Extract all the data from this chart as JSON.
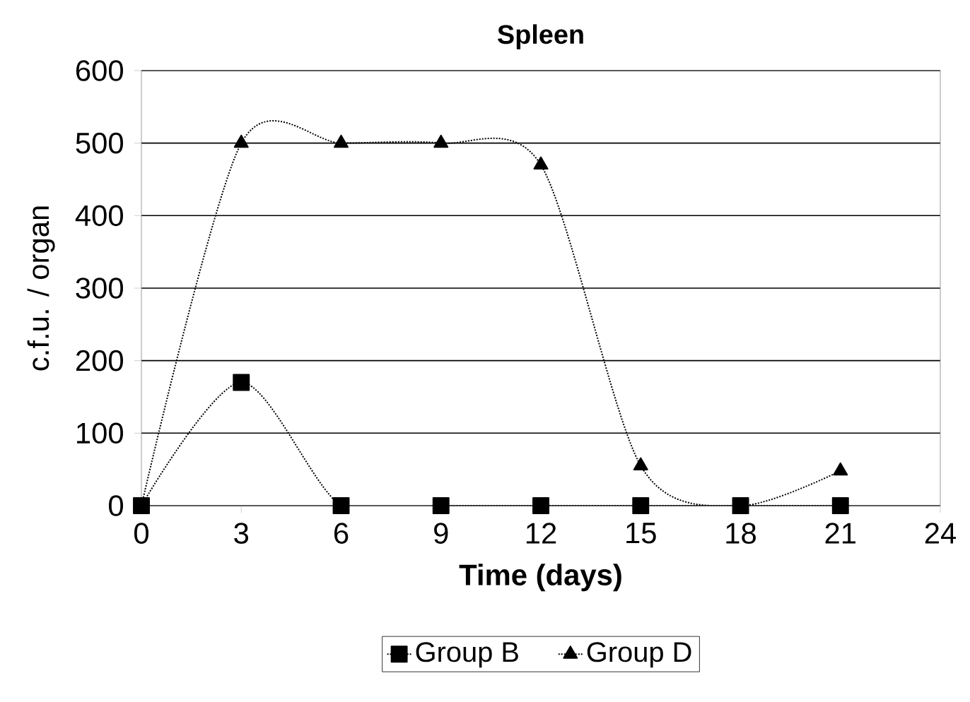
{
  "chart_data": {
    "type": "line",
    "title": "Spleen",
    "xlabel": "Time (days)",
    "ylabel": "c.f.u. / organ",
    "x": [
      0,
      3,
      6,
      9,
      12,
      15,
      18,
      21
    ],
    "series": [
      {
        "name": "Group B",
        "color": "#000000",
        "marker": "square",
        "values": [
          0,
          170,
          0,
          0,
          0,
          0,
          0,
          0
        ]
      },
      {
        "name": "Group D",
        "color": "#000000",
        "marker": "triangle",
        "values": [
          0,
          500,
          500,
          500,
          470,
          55,
          0,
          48
        ]
      }
    ],
    "xlim": [
      0,
      24
    ],
    "xticks": [
      0,
      3,
      6,
      9,
      12,
      15,
      18,
      21,
      24
    ],
    "ylim": [
      0,
      600
    ],
    "yticks": [
      0,
      100,
      200,
      300,
      400,
      500,
      600
    ],
    "grid": "y",
    "legend": "bottom",
    "line_style": "dotted"
  }
}
